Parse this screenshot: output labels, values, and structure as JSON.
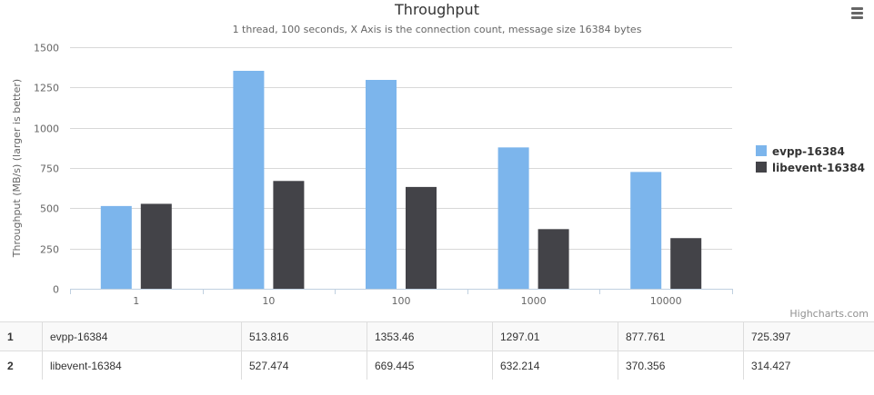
{
  "chart": {
    "title": "Throughput",
    "subtitle": "1 thread, 100 seconds, X Axis is the connection count, message size 16384 bytes",
    "credits": "Highcharts.com",
    "menu_icon": "hamburger-menu-icon"
  },
  "chart_data": {
    "type": "bar",
    "title": "Throughput",
    "subtitle": "1 thread, 100 seconds, X Axis is the connection count, message size 16384 bytes",
    "xlabel": "",
    "ylabel": "Throughput (MB/s) (larger is better)",
    "categories": [
      "1",
      "10",
      "100",
      "1000",
      "10000"
    ],
    "ylim": [
      0,
      1500
    ],
    "yticks": [
      0,
      250,
      500,
      750,
      1000,
      1250,
      1500
    ],
    "grid": true,
    "legend_position": "right",
    "series": [
      {
        "name": "evpp-16384",
        "color": "#7cb5ec",
        "values": [
          513.816,
          1353.46,
          1297.01,
          877.761,
          725.397
        ]
      },
      {
        "name": "libevent-16384",
        "color": "#434348",
        "values": [
          527.474,
          669.445,
          632.214,
          370.356,
          314.427
        ]
      }
    ]
  },
  "table": {
    "rows": [
      {
        "index": "1",
        "name": "evpp-16384",
        "values": [
          "513.816",
          "1353.46",
          "1297.01",
          "877.761",
          "725.397"
        ]
      },
      {
        "index": "2",
        "name": "libevent-16384",
        "values": [
          "527.474",
          "669.445",
          "632.214",
          "370.356",
          "314.427"
        ]
      }
    ]
  }
}
